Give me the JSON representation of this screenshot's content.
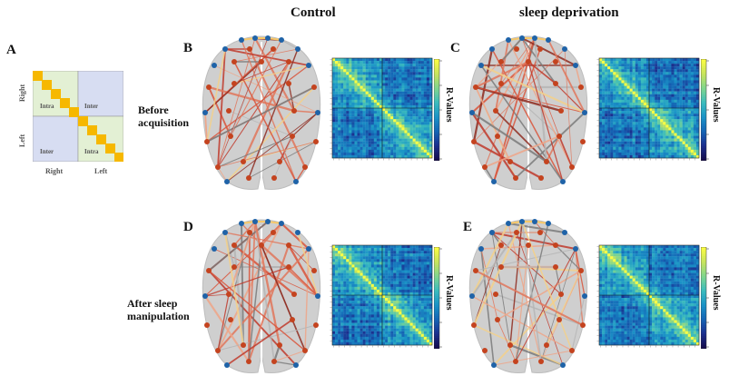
{
  "columns": {
    "control": "Control",
    "sleep_deprivation": "sleep deprivation"
  },
  "rows": {
    "before": [
      "Before",
      "acquisition"
    ],
    "after": [
      "After sleep",
      "manipulation"
    ]
  },
  "panels": {
    "A": "A",
    "B": "B",
    "C": "C",
    "D": "D",
    "E": "E"
  },
  "schematic": {
    "y_axis": {
      "top": "Right",
      "bottom": "Left"
    },
    "x_axis": {
      "left": "Right",
      "right": "Left"
    },
    "quadrants": {
      "top_left": "Intra",
      "top_right": "Inter",
      "bottom_left": "Inter",
      "bottom_right": "Intra"
    },
    "colors": {
      "intra": "#e3f0d4",
      "inter": "#d7ddf2",
      "diagonal": "#f6b800"
    }
  },
  "colorbar_label": "R-Values",
  "colormap": [
    "#150c4d",
    "#1b2f8e",
    "#1565b5",
    "#1a93c7",
    "#3bbcbd",
    "#7fd58e",
    "#c6e35d",
    "#fbfd42"
  ],
  "node_colors": {
    "frontal": "#1f63a8",
    "other": "#c4431f"
  },
  "brain_color": "#cfcfcf"
}
